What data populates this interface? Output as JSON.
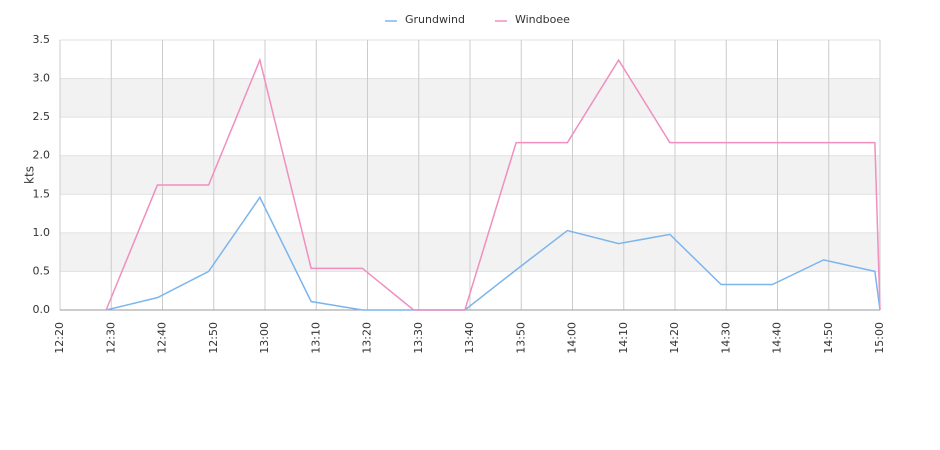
{
  "chart_data": {
    "type": "line",
    "y_label": "kts",
    "x": [
      "12:29",
      "12:39",
      "12:49",
      "12:59",
      "13:09",
      "13:19",
      "13:29",
      "13:39",
      "13:49",
      "13:59",
      "14:09",
      "14:19",
      "14:29",
      "14:39",
      "14:49",
      "14:59",
      "15:00"
    ],
    "series": [
      {
        "name": "Grundwind",
        "color": "#7cb5ec",
        "values": [
          0,
          0.16,
          0.5,
          1.46,
          0.11,
          0,
          0,
          0,
          0.52,
          1.03,
          0.86,
          0.98,
          0.33,
          0.33,
          0.65,
          0.5,
          0
        ]
      },
      {
        "name": "Windboee",
        "color": "#f08fc0",
        "values": [
          0,
          1.62,
          1.62,
          3.24,
          0.54,
          0.54,
          0,
          0,
          2.17,
          2.17,
          3.24,
          2.17,
          2.17,
          2.17,
          2.17,
          2.17,
          0
        ]
      }
    ],
    "xlim": [
      "12:20",
      "15:00"
    ],
    "xticks": [
      "12:20",
      "12:30",
      "12:40",
      "12:50",
      "13:00",
      "13:10",
      "13:20",
      "13:30",
      "13:40",
      "13:50",
      "14:00",
      "14:10",
      "14:20",
      "14:30",
      "14:40",
      "14:50",
      "15:00"
    ],
    "ylim": [
      0,
      3.5
    ],
    "yticks": [
      {
        "value": 0,
        "label": "0.0"
      },
      {
        "value": 0.5,
        "label": "0.5"
      },
      {
        "value": 1,
        "label": "1.0"
      },
      {
        "value": 1.5,
        "label": "1.5"
      },
      {
        "value": 2,
        "label": "2.0"
      },
      {
        "value": 2.5,
        "label": "2.5"
      },
      {
        "value": 3,
        "label": "3.0"
      },
      {
        "value": 3.5,
        "label": "3.5"
      }
    ],
    "grid": true,
    "legend": "top"
  }
}
